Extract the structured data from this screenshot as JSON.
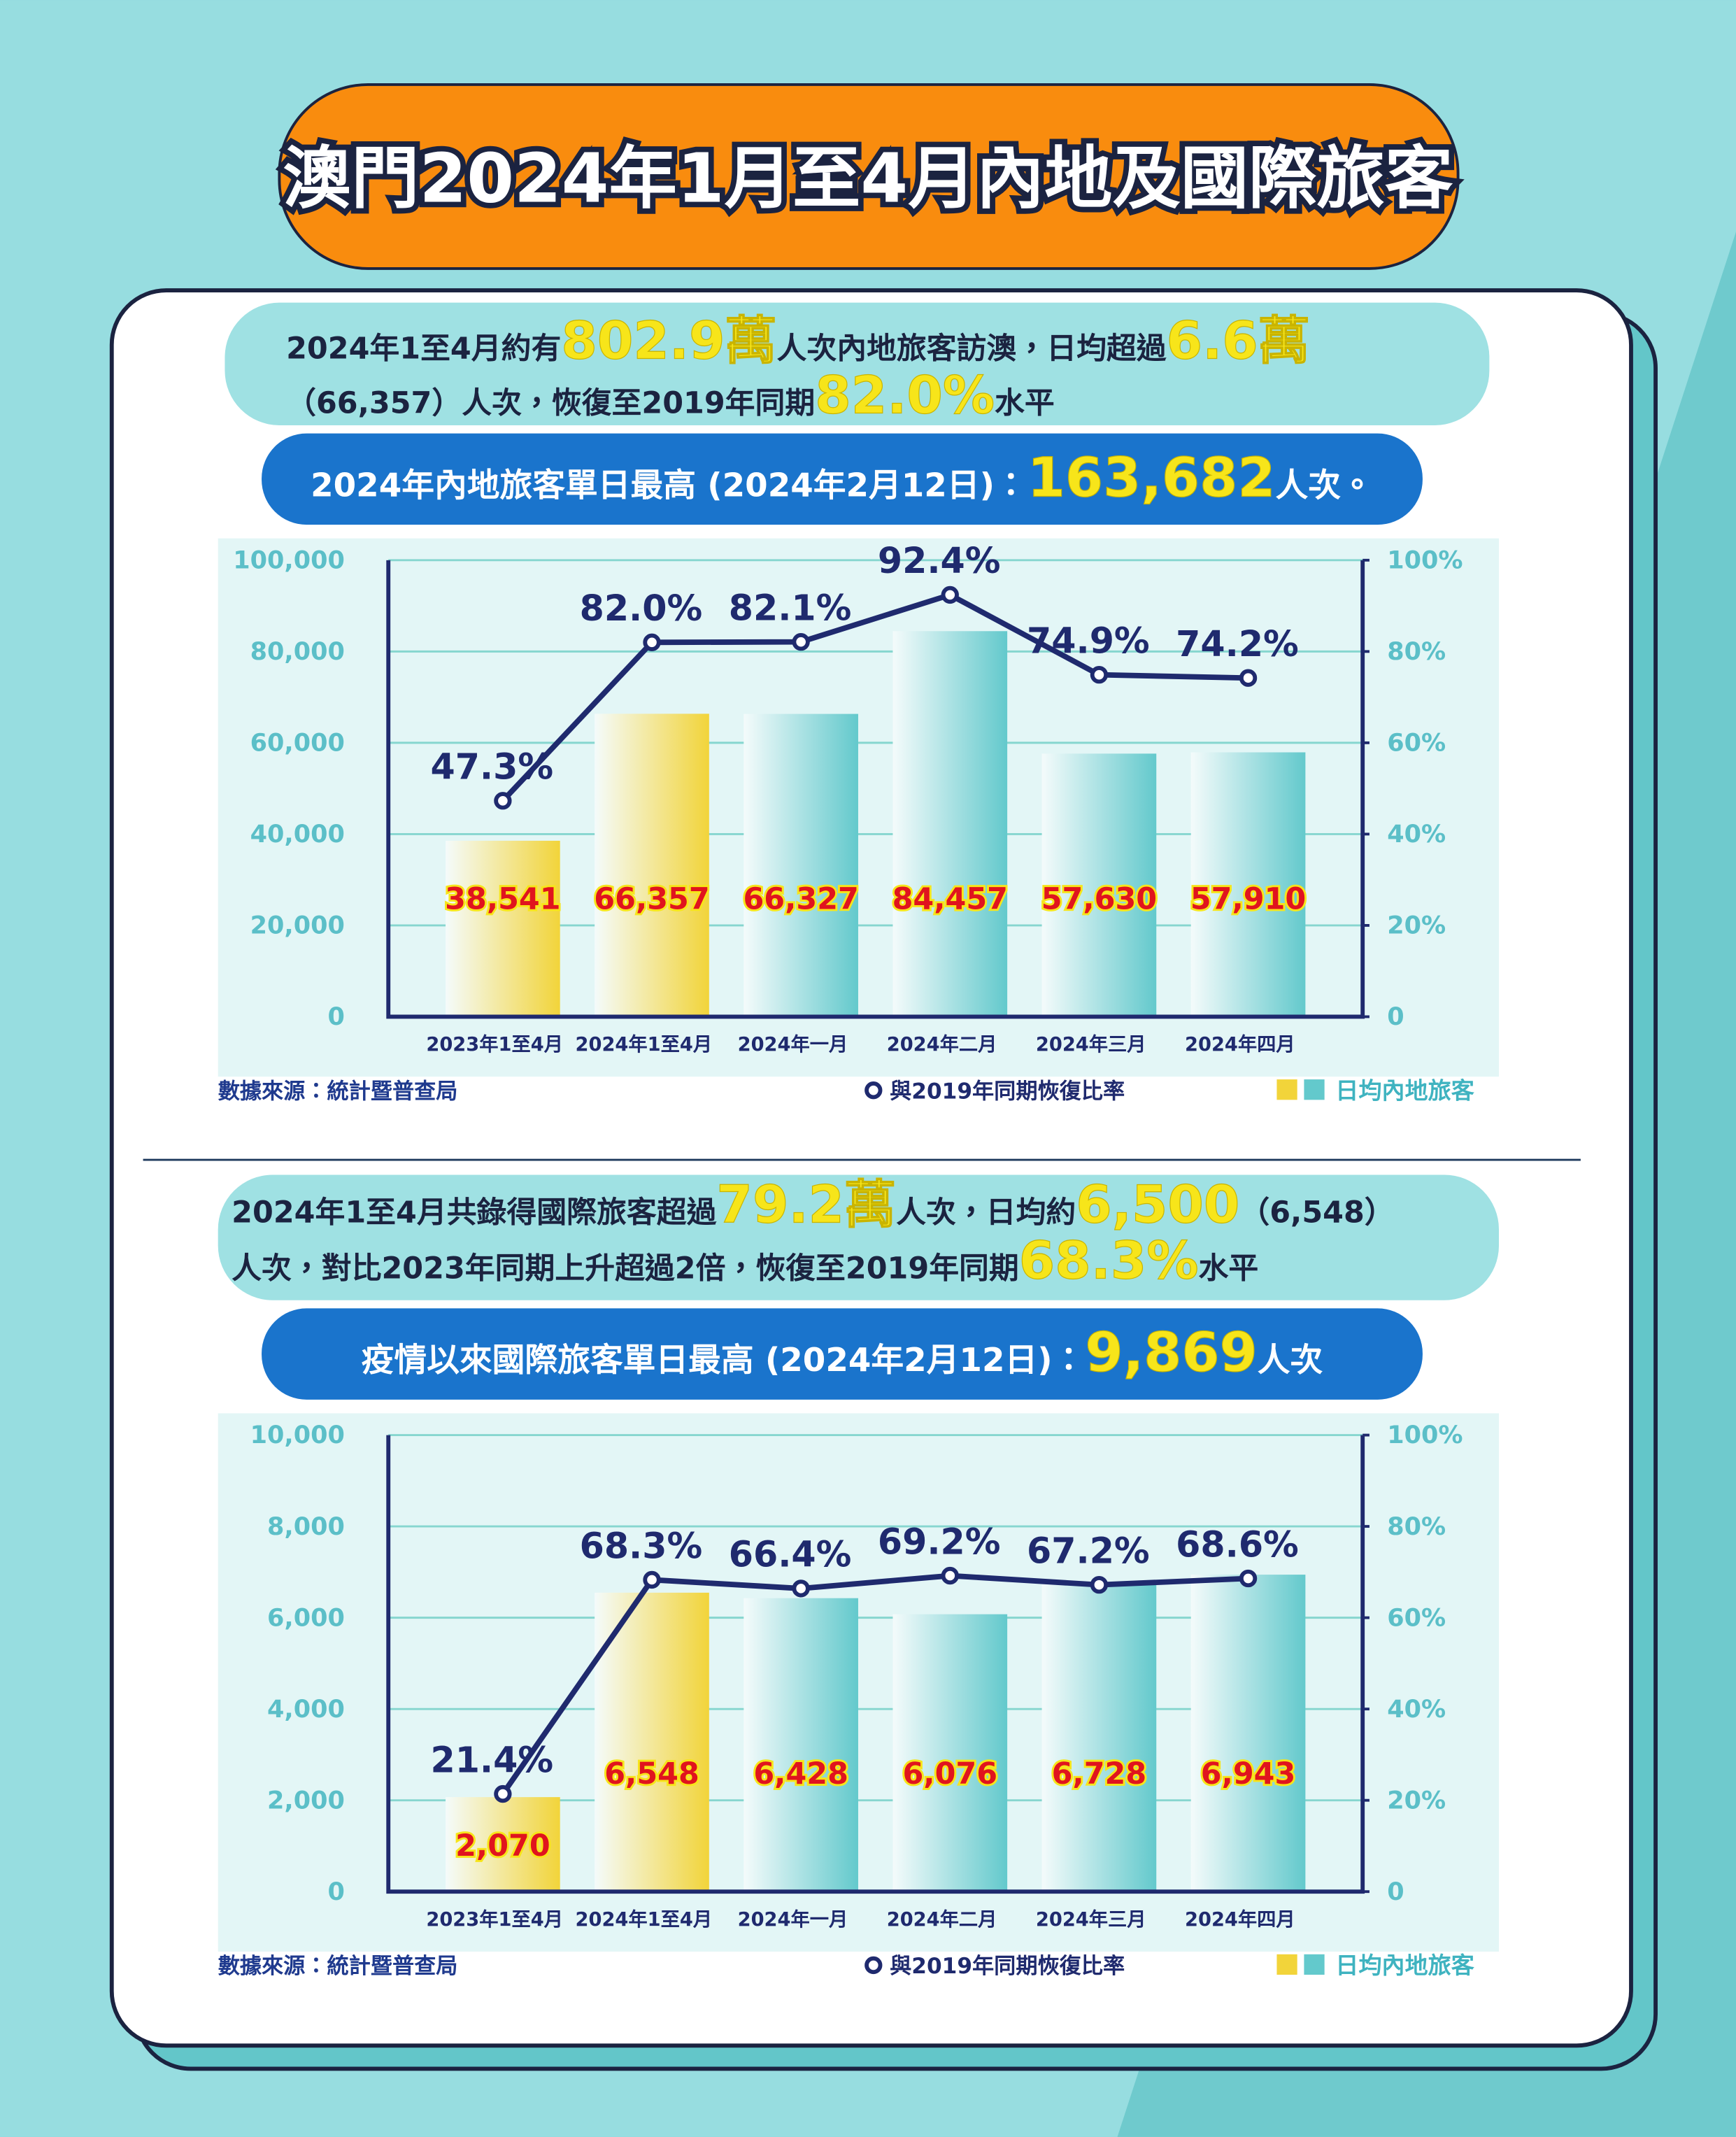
{
  "title": "澳門2024年1月至4月內地及國際旅客",
  "sections": [
    {
      "summary": [
        [
          {
            "text": "2024年1至4月約有"
          },
          {
            "text": "802.9萬",
            "emphasis": true
          },
          {
            "text": "人次內地旅客訪澳，日均超過"
          },
          {
            "text": "6.6萬",
            "emphasis": true
          }
        ],
        [
          {
            "text": "（66,357）人次，恢復至2019年同期"
          },
          {
            "text": "82.0%",
            "emphasis": true
          },
          {
            "text": "水平"
          }
        ]
      ],
      "highlight": [
        {
          "text": "2024年內地旅客單日最高 (2024年2月12日)："
        },
        {
          "text": "163,682",
          "emphasis": true
        },
        {
          "text": "人次。"
        }
      ]
    },
    {
      "summary": [
        [
          {
            "text": "2024年1至4月共錄得國際旅客超過"
          },
          {
            "text": "79.2萬",
            "emphasis": true
          },
          {
            "text": "人次，日均約"
          },
          {
            "text": "6,500",
            "emphasis": true
          },
          {
            "text": "（6,548）"
          }
        ],
        [
          {
            "text": "人次，對比2023年同期上升超過2倍，恢復至2019年同期"
          },
          {
            "text": "68.3%",
            "emphasis": true
          },
          {
            "text": "水平"
          }
        ]
      ],
      "highlight": [
        {
          "text": "疫情以來國際旅客單日最高 (2024年2月12日)："
        },
        {
          "text": "9,869",
          "emphasis": true
        },
        {
          "text": "人次"
        }
      ]
    }
  ],
  "chart_data": [
    {
      "type": "bar",
      "source": "數據來源：統計暨普查局",
      "categories": [
        "2023年1至4月",
        "2024年1至4月",
        "2024年一月",
        "2024年二月",
        "2024年三月",
        "2024年四月"
      ],
      "ylim": [
        0,
        100000
      ],
      "yticks": [
        0,
        {
          "value": 20000,
          "label": "20,000"
        },
        {
          "value": 40000,
          "label": "40,000"
        },
        {
          "value": 60000,
          "label": "60,000"
        },
        {
          "value": 80000,
          "label": "80,000"
        },
        {
          "value": 100000,
          "label": "100,000"
        }
      ],
      "y2lim": [
        0,
        100
      ],
      "y2ticks": [
        0,
        {
          "value": 20,
          "label": "20%"
        },
        {
          "value": 40,
          "label": "40%"
        },
        {
          "value": 60,
          "label": "60%"
        },
        {
          "value": 80,
          "label": "80%"
        },
        {
          "value": 100,
          "label": "100%"
        }
      ],
      "grid": true,
      "series": [
        {
          "name": "日均內地旅客",
          "type": "bar",
          "colors": [
            "#f2d43a",
            "#f2d43a",
            "#63c9cc",
            "#63c9cc",
            "#63c9cc",
            "#63c9cc"
          ],
          "legend_colors": [
            "#f2d43a",
            "#63c9cc"
          ],
          "values": [
            38541,
            66357,
            66327,
            84457,
            57630,
            57910
          ],
          "value_labels": [
            "38,541",
            "66,357",
            "66,327",
            "84,457",
            "57,630",
            "57,910"
          ]
        },
        {
          "name": "與2019年同期恢復比率",
          "type": "line",
          "axis": "y2",
          "color": "#1f2a6e",
          "values": [
            47.3,
            82.0,
            82.1,
            92.4,
            74.9,
            74.2
          ],
          "value_labels": [
            "47.3%",
            "82.0%",
            "82.1%",
            "92.4%",
            "74.9%",
            "74.2%"
          ]
        }
      ]
    },
    {
      "type": "bar",
      "source": "數據來源：統計暨普查局",
      "categories": [
        "2023年1至4月",
        "2024年1至4月",
        "2024年一月",
        "2024年二月",
        "2024年三月",
        "2024年四月"
      ],
      "ylim": [
        0,
        10000
      ],
      "yticks": [
        0,
        {
          "value": 2000,
          "label": "2,000"
        },
        {
          "value": 4000,
          "label": "4,000"
        },
        {
          "value": 6000,
          "label": "6,000"
        },
        {
          "value": 8000,
          "label": "8,000"
        },
        {
          "value": 10000,
          "label": "10,000"
        }
      ],
      "y2lim": [
        0,
        100
      ],
      "y2ticks": [
        0,
        {
          "value": 20,
          "label": "20%"
        },
        {
          "value": 40,
          "label": "40%"
        },
        {
          "value": 60,
          "label": "60%"
        },
        {
          "value": 80,
          "label": "80%"
        },
        {
          "value": 100,
          "label": "100%"
        }
      ],
      "grid": true,
      "series": [
        {
          "name": "日均內地旅客",
          "type": "bar",
          "colors": [
            "#f2d43a",
            "#f2d43a",
            "#63c9cc",
            "#63c9cc",
            "#63c9cc",
            "#63c9cc"
          ],
          "legend_colors": [
            "#f2d43a",
            "#63c9cc"
          ],
          "values": [
            2070,
            6548,
            6428,
            6076,
            6728,
            6943
          ],
          "value_labels": [
            "2,070",
            "6,548",
            "6,428",
            "6,076",
            "6,728",
            "6,943"
          ]
        },
        {
          "name": "與2019年同期恢復比率",
          "type": "line",
          "axis": "y2",
          "color": "#1f2a6e",
          "values": [
            21.4,
            68.3,
            66.4,
            69.2,
            67.2,
            68.6
          ],
          "value_labels": [
            "21.4%",
            "68.3%",
            "66.4%",
            "69.2%",
            "67.2%",
            "68.6%"
          ]
        }
      ]
    }
  ]
}
